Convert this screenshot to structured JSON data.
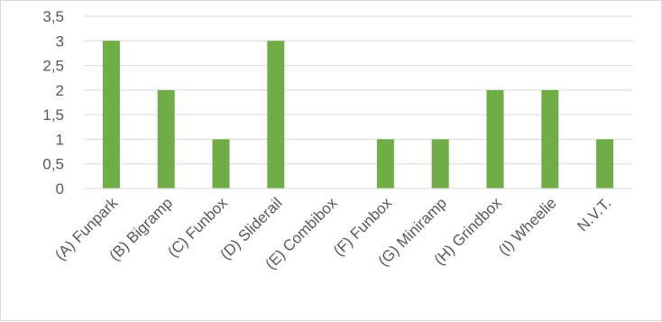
{
  "chart_data": {
    "type": "bar",
    "title": "",
    "xlabel": "",
    "ylabel": "",
    "categories": [
      "(A) Funpark",
      "(B) Bigramp",
      "(C) Funbox",
      "(D) Sliderail",
      "(E) Combibox",
      "(F) Funbox",
      "(G) Miniramp",
      "(H) Grindbox",
      "(I) Wheelie",
      "N.V.T."
    ],
    "values": [
      3,
      2,
      1,
      3,
      0,
      1,
      1,
      2,
      2,
      1
    ],
    "ylim": [
      0,
      3.5
    ],
    "yticks": [
      "0",
      "0,5",
      "1",
      "1,5",
      "2",
      "2,5",
      "3",
      "3,5"
    ],
    "ytick_values": [
      0,
      0.5,
      1,
      1.5,
      2,
      2.5,
      3,
      3.5
    ],
    "grid": true,
    "legend": "none",
    "colors": {
      "bar": "#70ad47",
      "grid": "#d9d9d9",
      "text": "#595959"
    }
  }
}
